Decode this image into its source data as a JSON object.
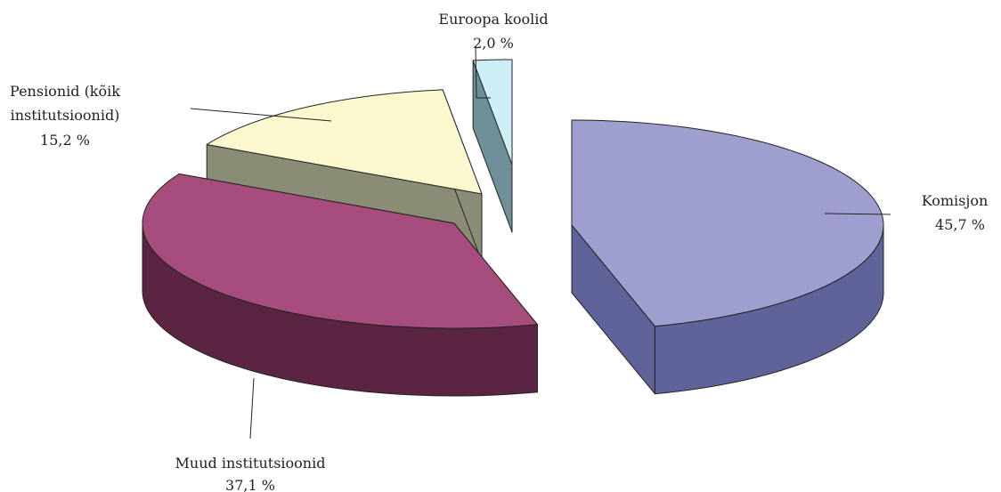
{
  "chart_data": {
    "type": "pie",
    "style": "3d-exploded",
    "title": "",
    "legend": "none",
    "slices": [
      {
        "label_lines": [
          "Komisjon"
        ],
        "value_label": "45,7 %",
        "value": 45.7,
        "top_color": "#9f9fcf",
        "side_color": "#5f6399"
      },
      {
        "label_lines": [
          "Muud institutsioonid"
        ],
        "value_label": "37,1 %",
        "value": 37.1,
        "top_color": "#a64d7d",
        "side_color": "#5b2443"
      },
      {
        "label_lines": [
          "Pensionid (kõik",
          "institutsioonid)"
        ],
        "value_label": "15,2 %",
        "value": 15.2,
        "top_color": "#fbf8cf",
        "side_color": "#8b8c76"
      },
      {
        "label_lines": [
          "Euroopa koolid"
        ],
        "value_label": "2,0 %",
        "value": 2.0,
        "top_color": "#cdeef5",
        "side_color": "#6f8f98"
      }
    ]
  }
}
